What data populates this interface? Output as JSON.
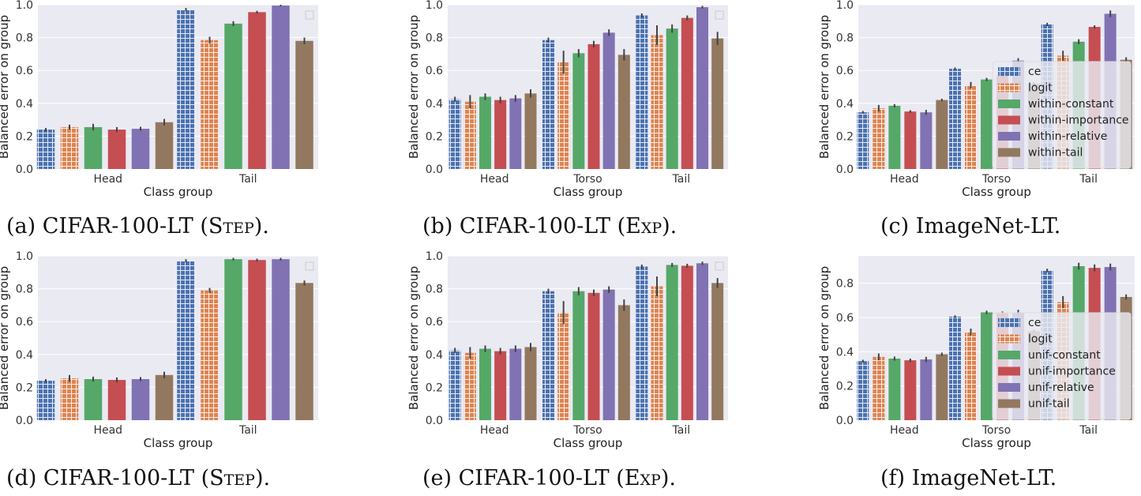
{
  "colors": {
    "ce": "#4c72b0",
    "logit": "#dd8452",
    "constant": "#55a868",
    "importance": "#c44e52",
    "relative": "#8172b3",
    "tail": "#937860",
    "plot_bg": "#eaeaf2",
    "grid": "#ffffff",
    "errorbar": "#444444"
  },
  "chart_data": [
    {
      "id": "a",
      "type": "bar",
      "categories": [
        "Head",
        "Tail"
      ],
      "xlabel": "Class group",
      "ylabel": "Balanced error on group",
      "ylim": [
        0,
        1.0
      ],
      "yticks": [
        "0.0",
        "0.2",
        "0.4",
        "0.6",
        "0.8",
        "1.0"
      ],
      "legend": "top-right (empty)",
      "series": [
        {
          "name": "ce",
          "values": [
            0.24,
            0.97
          ],
          "err": [
            0.01,
            0.01
          ]
        },
        {
          "name": "logit",
          "values": [
            0.255,
            0.785
          ],
          "err": [
            0.015,
            0.02
          ]
        },
        {
          "name": "within-constant",
          "values": [
            0.255,
            0.885
          ],
          "err": [
            0.02,
            0.015
          ]
        },
        {
          "name": "within-importance",
          "values": [
            0.24,
            0.955
          ],
          "err": [
            0.015,
            0.008
          ]
        },
        {
          "name": "within-relative",
          "values": [
            0.245,
            0.995
          ],
          "err": [
            0.012,
            0.005
          ]
        },
        {
          "name": "within-tail",
          "values": [
            0.285,
            0.78
          ],
          "err": [
            0.02,
            0.02
          ]
        }
      ]
    },
    {
      "id": "b",
      "type": "bar",
      "categories": [
        "Head",
        "Torso",
        "Tail"
      ],
      "xlabel": "Class group",
      "ylabel": "Balanced error on group",
      "ylim": [
        0,
        1.0
      ],
      "yticks": [
        "0.0",
        "0.2",
        "0.4",
        "0.6",
        "0.8",
        "1.0"
      ],
      "legend": "top-right (empty)",
      "series": [
        {
          "name": "ce",
          "values": [
            0.425,
            0.785,
            0.935
          ],
          "err": [
            0.015,
            0.015,
            0.012
          ]
        },
        {
          "name": "logit",
          "values": [
            0.41,
            0.65,
            0.815
          ],
          "err": [
            0.04,
            0.07,
            0.06
          ]
        },
        {
          "name": "within-constant",
          "values": [
            0.44,
            0.705,
            0.855
          ],
          "err": [
            0.02,
            0.025,
            0.025
          ]
        },
        {
          "name": "within-importance",
          "values": [
            0.42,
            0.76,
            0.92
          ],
          "err": [
            0.02,
            0.02,
            0.015
          ]
        },
        {
          "name": "within-relative",
          "values": [
            0.43,
            0.83,
            0.985
          ],
          "err": [
            0.02,
            0.02,
            0.008
          ]
        },
        {
          "name": "within-tail",
          "values": [
            0.46,
            0.695,
            0.795
          ],
          "err": [
            0.025,
            0.035,
            0.04
          ]
        }
      ]
    },
    {
      "id": "c",
      "type": "bar",
      "categories": [
        "Head",
        "Torso",
        "Tail"
      ],
      "xlabel": "Class group",
      "ylabel": "Balanced error on group",
      "ylim": [
        0,
        1.0
      ],
      "yticks": [
        "0.0",
        "0.2",
        "0.4",
        "0.6",
        "0.8",
        "1.0"
      ],
      "legend": "center-right",
      "series": [
        {
          "name": "ce",
          "values": [
            0.345,
            0.61,
            0.88
          ],
          "err": [
            0.008,
            0.008,
            0.01
          ]
        },
        {
          "name": "logit",
          "values": [
            0.37,
            0.51,
            0.69
          ],
          "err": [
            0.02,
            0.02,
            0.03
          ]
        },
        {
          "name": "within-constant",
          "values": [
            0.385,
            0.545,
            0.775
          ],
          "err": [
            0.01,
            0.01,
            0.015
          ]
        },
        {
          "name": "within-importance",
          "values": [
            0.35,
            0.57,
            0.865
          ],
          "err": [
            0.008,
            0.01,
            0.01
          ]
        },
        {
          "name": "within-relative",
          "values": [
            0.345,
            0.66,
            0.945
          ],
          "err": [
            0.015,
            0.015,
            0.02
          ]
        },
        {
          "name": "within-tail",
          "values": [
            0.42,
            0.52,
            0.665
          ],
          "err": [
            0.008,
            0.01,
            0.015
          ]
        }
      ]
    },
    {
      "id": "d",
      "type": "bar",
      "categories": [
        "Head",
        "Tail"
      ],
      "xlabel": "Class group",
      "ylabel": "Balanced error on group",
      "ylim": [
        0,
        1.0
      ],
      "yticks": [
        "0.0",
        "0.2",
        "0.4",
        "0.6",
        "0.8",
        "1.0"
      ],
      "legend": "top-right (empty)",
      "series": [
        {
          "name": "ce",
          "values": [
            0.24,
            0.97
          ],
          "err": [
            0.01,
            0.01
          ]
        },
        {
          "name": "logit",
          "values": [
            0.255,
            0.79
          ],
          "err": [
            0.02,
            0.015
          ]
        },
        {
          "name": "unif-constant",
          "values": [
            0.25,
            0.98
          ],
          "err": [
            0.015,
            0.008
          ]
        },
        {
          "name": "unif-importance",
          "values": [
            0.245,
            0.975
          ],
          "err": [
            0.015,
            0.008
          ]
        },
        {
          "name": "unif-relative",
          "values": [
            0.25,
            0.98
          ],
          "err": [
            0.012,
            0.008
          ]
        },
        {
          "name": "unif-tail",
          "values": [
            0.275,
            0.835
          ],
          "err": [
            0.02,
            0.015
          ]
        }
      ]
    },
    {
      "id": "e",
      "type": "bar",
      "categories": [
        "Head",
        "Torso",
        "Tail"
      ],
      "xlabel": "Class group",
      "ylabel": "Balanced error on group",
      "ylim": [
        0,
        1.0
      ],
      "yticks": [
        "0.0",
        "0.2",
        "0.4",
        "0.6",
        "0.8",
        "1.0"
      ],
      "legend": "top-right (empty)",
      "series": [
        {
          "name": "ce",
          "values": [
            0.425,
            0.785,
            0.935
          ],
          "err": [
            0.015,
            0.015,
            0.012
          ]
        },
        {
          "name": "logit",
          "values": [
            0.41,
            0.655,
            0.815
          ],
          "err": [
            0.035,
            0.07,
            0.06
          ]
        },
        {
          "name": "unif-constant",
          "values": [
            0.435,
            0.785,
            0.945
          ],
          "err": [
            0.02,
            0.025,
            0.012
          ]
        },
        {
          "name": "unif-importance",
          "values": [
            0.42,
            0.775,
            0.94
          ],
          "err": [
            0.02,
            0.02,
            0.012
          ]
        },
        {
          "name": "unif-relative",
          "values": [
            0.435,
            0.795,
            0.955
          ],
          "err": [
            0.02,
            0.02,
            0.01
          ]
        },
        {
          "name": "unif-tail",
          "values": [
            0.445,
            0.7,
            0.835
          ],
          "err": [
            0.025,
            0.035,
            0.03
          ]
        }
      ]
    },
    {
      "id": "f",
      "type": "bar",
      "categories": [
        "Head",
        "Torso",
        "Tail"
      ],
      "xlabel": "Class group",
      "ylabel": "Balanced error on group",
      "ylim": [
        0,
        0.96
      ],
      "yticks": [
        "0.0",
        "0.2",
        "0.4",
        "0.6",
        "0.8"
      ],
      "legend": "center-right",
      "series": [
        {
          "name": "ce",
          "values": [
            0.345,
            0.605,
            0.875
          ],
          "err": [
            0.008,
            0.008,
            0.01
          ]
        },
        {
          "name": "logit",
          "values": [
            0.37,
            0.515,
            0.69
          ],
          "err": [
            0.02,
            0.02,
            0.035
          ]
        },
        {
          "name": "unif-constant",
          "values": [
            0.36,
            0.63,
            0.9
          ],
          "err": [
            0.012,
            0.01,
            0.02
          ]
        },
        {
          "name": "unif-importance",
          "values": [
            0.35,
            0.625,
            0.89
          ],
          "err": [
            0.01,
            0.01,
            0.02
          ]
        },
        {
          "name": "unif-relative",
          "values": [
            0.355,
            0.63,
            0.895
          ],
          "err": [
            0.015,
            0.015,
            0.02
          ]
        },
        {
          "name": "unif-tail",
          "values": [
            0.385,
            0.52,
            0.72
          ],
          "err": [
            0.01,
            0.01,
            0.015
          ]
        }
      ]
    }
  ],
  "captions": [
    {
      "pre": "(a) CIFAR-100-LT (",
      "sc": "Step",
      "post": ")."
    },
    {
      "pre": "(b) CIFAR-100-LT (",
      "sc": "Exp",
      "post": ")."
    },
    {
      "pre": "(c) ImageNet-LT.",
      "sc": "",
      "post": ""
    },
    {
      "pre": "(d) CIFAR-100-LT (",
      "sc": "Step",
      "post": ")."
    },
    {
      "pre": "(e) CIFAR-100-LT (",
      "sc": "Exp",
      "post": ")."
    },
    {
      "pre": "(f) ImageNet-LT.",
      "sc": "",
      "post": ""
    }
  ]
}
